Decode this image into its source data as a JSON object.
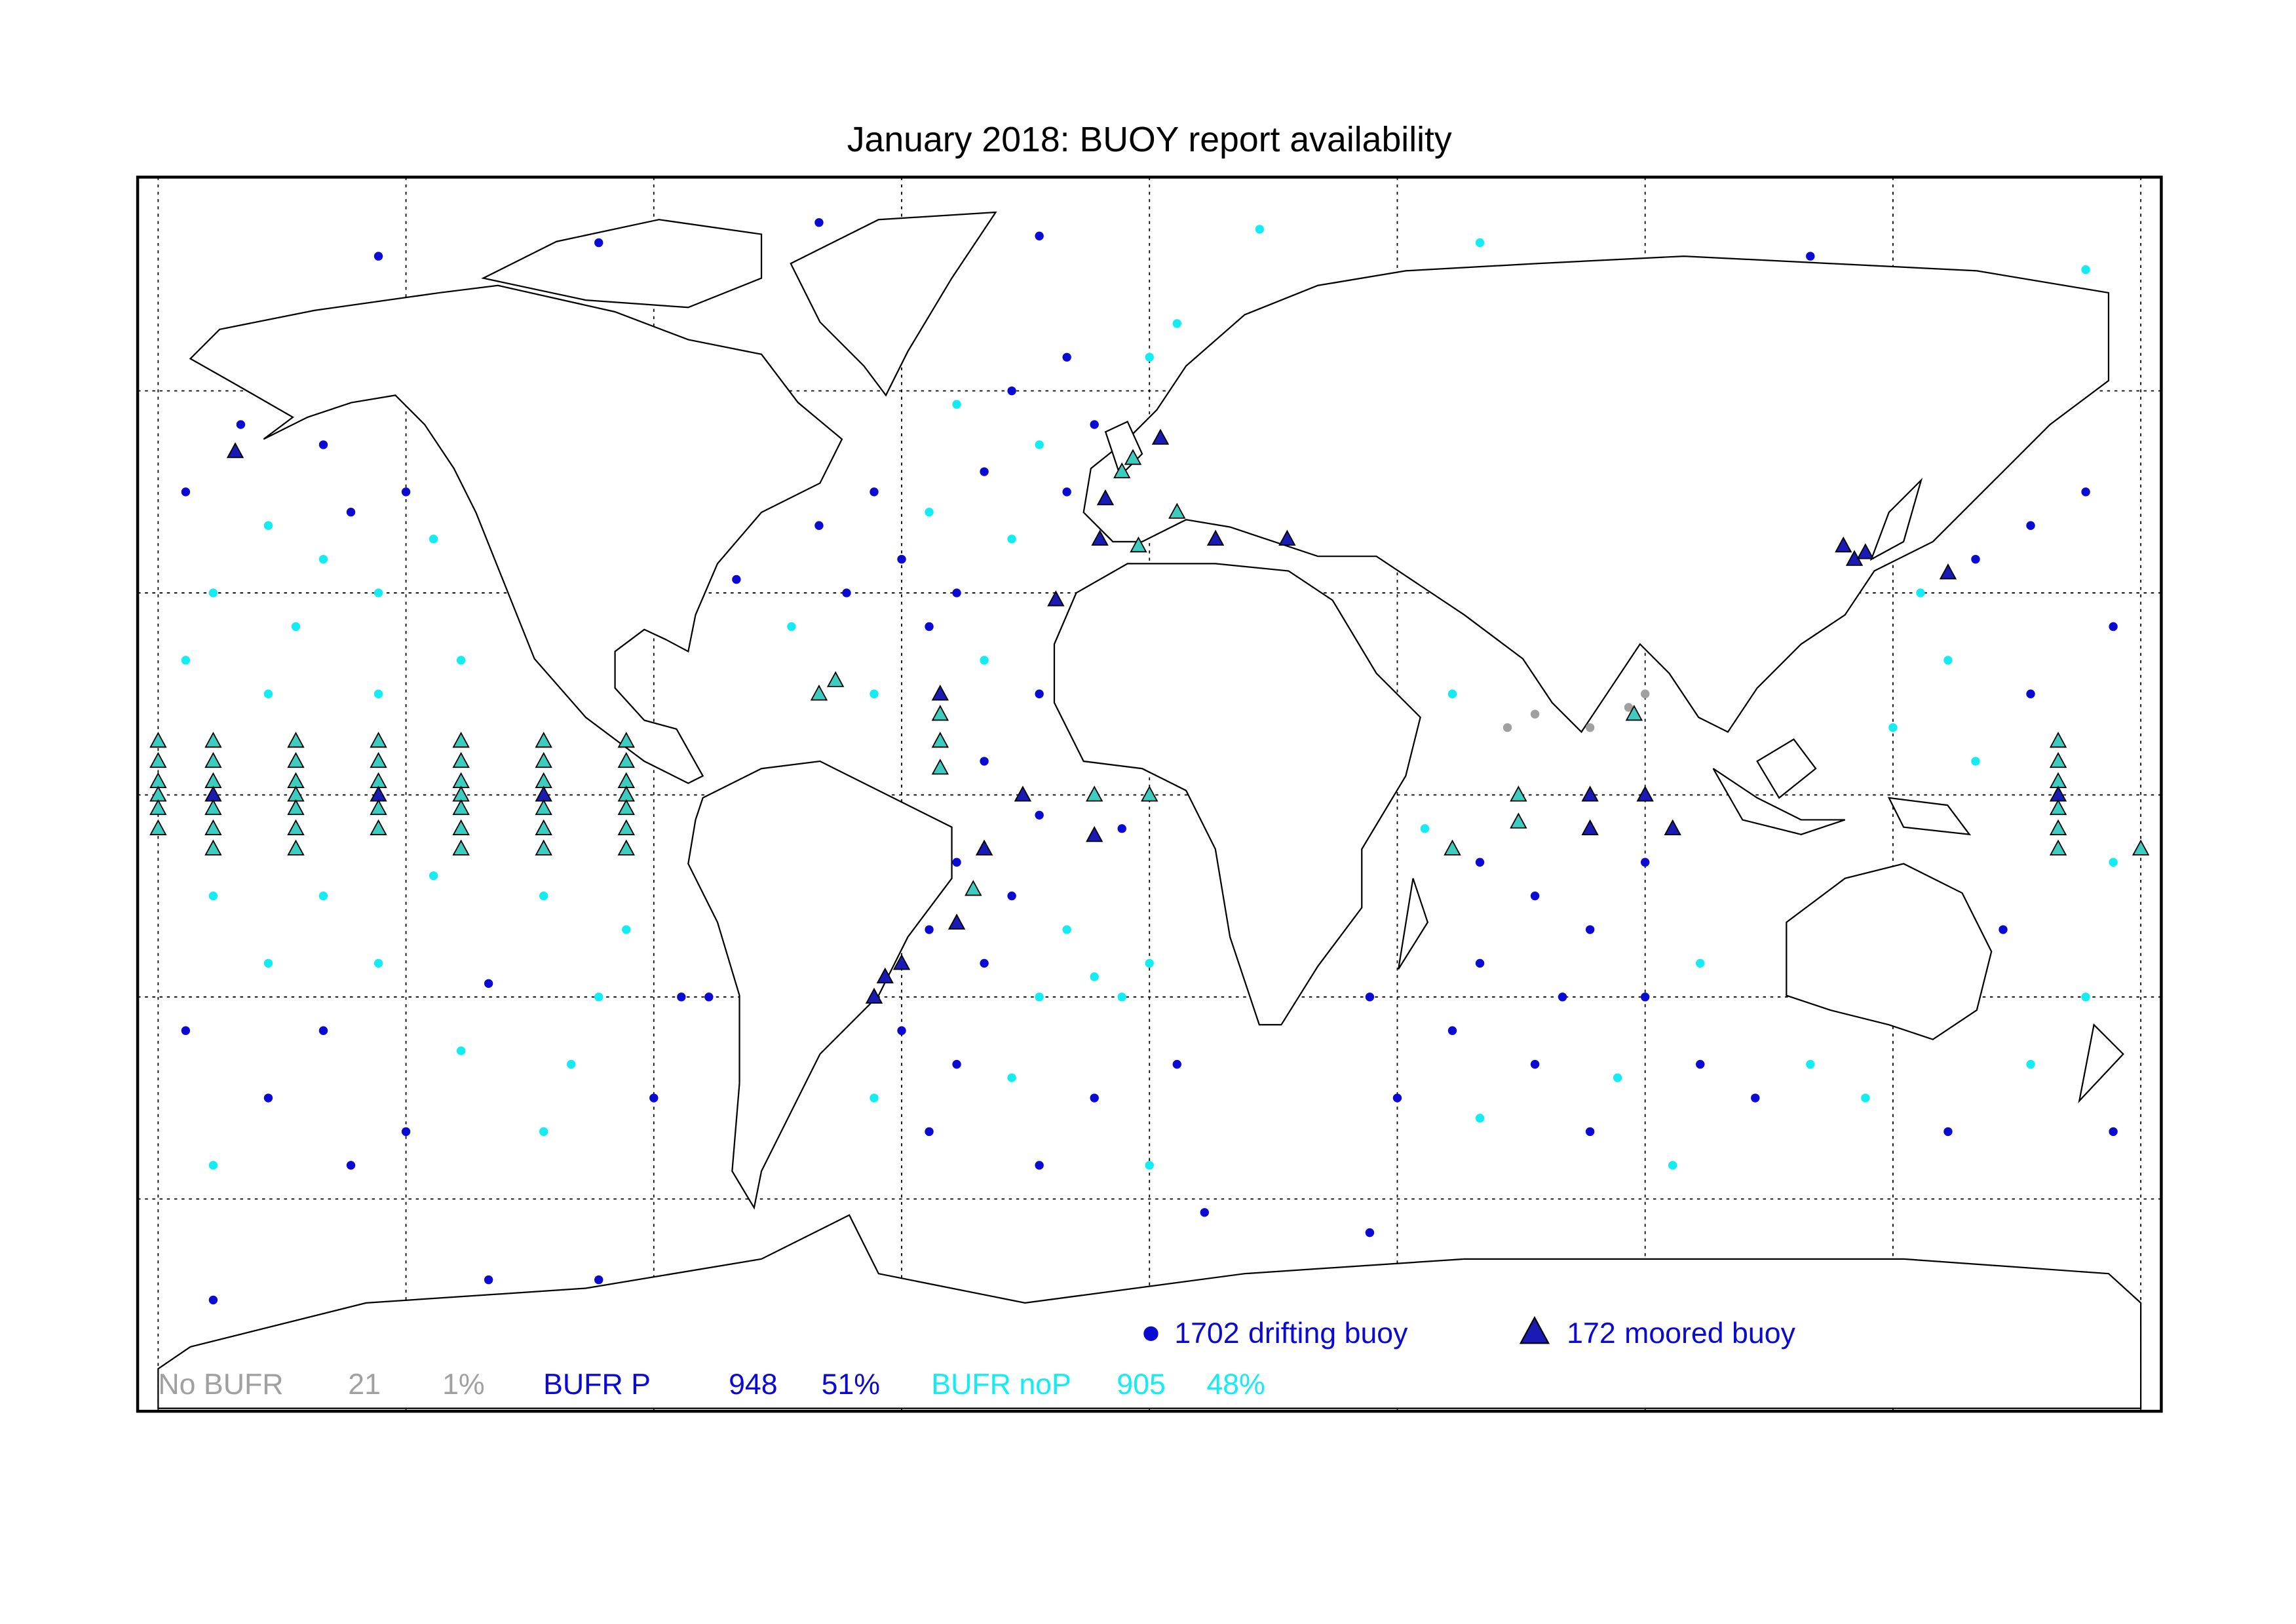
{
  "title": "January 2018: BUOY report availability",
  "map": {
    "lon_range": [
      -180,
      180
    ],
    "lat_range": [
      -90,
      90
    ],
    "meridians": [
      -180,
      -135,
      -90,
      -45,
      0,
      45,
      90,
      135,
      180
    ],
    "parallels": [
      -60,
      -30,
      0,
      30,
      60
    ]
  },
  "legend": [
    {
      "count": 1702,
      "label": "drifting buoy",
      "color": "#0a0ad2"
    },
    {
      "count": 172,
      "label": "moored buoy",
      "color": "#0a0ad2"
    }
  ],
  "stats": [
    {
      "name": "No BUFR",
      "count": 21,
      "percent": {
        "value": 1,
        "label": "1%"
      },
      "color": "#a0a0a0"
    },
    {
      "name": "BUFR P",
      "count": 948,
      "percent": {
        "value": 51,
        "label": "51%"
      },
      "color": "#0a0ad2"
    },
    {
      "name": "BUFR noP",
      "count": 905,
      "percent": {
        "value": 48,
        "label": "48%"
      },
      "color": "#14ecf4"
    }
  ],
  "buoys": {
    "drifting": [
      [
        -175,
        45,
        "BUFR P"
      ],
      [
        -160,
        40,
        "BUFR noP"
      ],
      [
        -150,
        35,
        "BUFR noP"
      ],
      [
        -145,
        42,
        "BUFR P"
      ],
      [
        -170,
        30,
        "BUFR noP"
      ],
      [
        -140,
        30,
        "BUFR noP"
      ],
      [
        -155,
        25,
        "BUFR noP"
      ],
      [
        -135,
        45,
        "BUFR P"
      ],
      [
        -165,
        55,
        "BUFR P"
      ],
      [
        -150,
        52,
        "BUFR P"
      ],
      [
        -130,
        38,
        "BUFR noP"
      ],
      [
        -175,
        20,
        "BUFR noP"
      ],
      [
        -125,
        20,
        "BUFR noP"
      ],
      [
        -160,
        15,
        "BUFR noP"
      ],
      [
        -140,
        15,
        "BUFR noP"
      ],
      [
        -170,
        -15,
        "BUFR noP"
      ],
      [
        -150,
        -15,
        "BUFR noP"
      ],
      [
        -130,
        -12,
        "BUFR noP"
      ],
      [
        -110,
        -15,
        "BUFR noP"
      ],
      [
        -95,
        -20,
        "BUFR noP"
      ],
      [
        -160,
        -25,
        "BUFR noP"
      ],
      [
        -140,
        -25,
        "BUFR noP"
      ],
      [
        -120,
        -28,
        "BUFR P"
      ],
      [
        -100,
        -30,
        "BUFR noP"
      ],
      [
        -85,
        -30,
        "BUFR P"
      ],
      [
        -175,
        -35,
        "BUFR P"
      ],
      [
        -150,
        -35,
        "BUFR P"
      ],
      [
        -125,
        -38,
        "BUFR noP"
      ],
      [
        -105,
        -40,
        "BUFR noP"
      ],
      [
        -160,
        -45,
        "BUFR P"
      ],
      [
        -135,
        -50,
        "BUFR P"
      ],
      [
        -110,
        -50,
        "BUFR noP"
      ],
      [
        -145,
        -55,
        "BUFR P"
      ],
      [
        -170,
        -55,
        "BUFR noP"
      ],
      [
        -90,
        -45,
        "BUFR P"
      ],
      [
        -80,
        -30,
        "BUFR P"
      ],
      [
        -140,
        80,
        "BUFR P"
      ],
      [
        -100,
        82,
        "BUFR P"
      ],
      [
        -60,
        85,
        "BUFR P"
      ],
      [
        -20,
        83,
        "BUFR P"
      ],
      [
        20,
        84,
        "BUFR noP"
      ],
      [
        60,
        82,
        "BUFR noP"
      ],
      [
        120,
        80,
        "BUFR P"
      ],
      [
        170,
        78,
        "BUFR noP"
      ],
      [
        -60,
        40,
        "BUFR P"
      ],
      [
        -50,
        45,
        "BUFR P"
      ],
      [
        -40,
        42,
        "BUFR noP"
      ],
      [
        -30,
        48,
        "BUFR P"
      ],
      [
        -20,
        52,
        "BUFR noP"
      ],
      [
        -45,
        35,
        "BUFR P"
      ],
      [
        -35,
        30,
        "BUFR P"
      ],
      [
        -25,
        38,
        "BUFR noP"
      ],
      [
        -15,
        45,
        "BUFR P"
      ],
      [
        -55,
        30,
        "BUFR P"
      ],
      [
        -65,
        25,
        "BUFR noP"
      ],
      [
        -40,
        25,
        "BUFR P"
      ],
      [
        -30,
        20,
        "BUFR noP"
      ],
      [
        -50,
        15,
        "BUFR noP"
      ],
      [
        -20,
        15,
        "BUFR P"
      ],
      [
        -10,
        55,
        "BUFR P"
      ],
      [
        -25,
        60,
        "BUFR P"
      ],
      [
        -35,
        58,
        "BUFR noP"
      ],
      [
        0,
        65,
        "BUFR noP"
      ],
      [
        5,
        70,
        "BUFR noP"
      ],
      [
        -15,
        65,
        "BUFR P"
      ],
      [
        -75,
        32,
        "BUFR P"
      ],
      [
        -30,
        5,
        "BUFR P"
      ],
      [
        -20,
        -3,
        "BUFR P"
      ],
      [
        -10,
        0,
        "BUFR P"
      ],
      [
        -5,
        -5,
        "BUFR P"
      ],
      [
        -35,
        -10,
        "BUFR P"
      ],
      [
        -25,
        -15,
        "BUFR P"
      ],
      [
        -15,
        -20,
        "BUFR noP"
      ],
      [
        -40,
        -20,
        "BUFR P"
      ],
      [
        -30,
        -25,
        "BUFR P"
      ],
      [
        -20,
        -30,
        "BUFR noP"
      ],
      [
        -10,
        -27,
        "BUFR noP"
      ],
      [
        0,
        -25,
        "BUFR noP"
      ],
      [
        -5,
        -30,
        "BUFR noP"
      ],
      [
        -45,
        -35,
        "BUFR P"
      ],
      [
        -35,
        -40,
        "BUFR P"
      ],
      [
        -25,
        -42,
        "BUFR noP"
      ],
      [
        -10,
        -45,
        "BUFR P"
      ],
      [
        5,
        -40,
        "BUFR P"
      ],
      [
        -40,
        -50,
        "BUFR P"
      ],
      [
        -20,
        -55,
        "BUFR P"
      ],
      [
        0,
        -55,
        "BUFR noP"
      ],
      [
        -50,
        -45,
        "BUFR noP"
      ],
      [
        50,
        -5,
        "BUFR noP"
      ],
      [
        60,
        -10,
        "BUFR P"
      ],
      [
        70,
        -15,
        "BUFR P"
      ],
      [
        80,
        -20,
        "BUFR P"
      ],
      [
        90,
        -10,
        "BUFR P"
      ],
      [
        65,
        10,
        "No BUFR"
      ],
      [
        70,
        12,
        "No BUFR"
      ],
      [
        80,
        10,
        "No BUFR"
      ],
      [
        87,
        13,
        "No BUFR"
      ],
      [
        90,
        15,
        "No BUFR"
      ],
      [
        60,
        -25,
        "BUFR P"
      ],
      [
        75,
        -30,
        "BUFR P"
      ],
      [
        90,
        -30,
        "BUFR P"
      ],
      [
        100,
        -25,
        "BUFR noP"
      ],
      [
        55,
        -35,
        "BUFR P"
      ],
      [
        70,
        -40,
        "BUFR P"
      ],
      [
        85,
        -42,
        "BUFR noP"
      ],
      [
        100,
        -40,
        "BUFR P"
      ],
      [
        110,
        -45,
        "BUFR P"
      ],
      [
        45,
        -45,
        "BUFR P"
      ],
      [
        60,
        -48,
        "BUFR noP"
      ],
      [
        80,
        -50,
        "BUFR P"
      ],
      [
        95,
        -55,
        "BUFR noP"
      ],
      [
        40,
        -30,
        "BUFR P"
      ],
      [
        55,
        15,
        "BUFR noP"
      ],
      [
        140,
        30,
        "BUFR noP"
      ],
      [
        150,
        35,
        "BUFR P"
      ],
      [
        160,
        40,
        "BUFR P"
      ],
      [
        170,
        45,
        "BUFR P"
      ],
      [
        145,
        20,
        "BUFR noP"
      ],
      [
        160,
        15,
        "BUFR P"
      ],
      [
        175,
        25,
        "BUFR P"
      ],
      [
        135,
        10,
        "BUFR noP"
      ],
      [
        150,
        5,
        "BUFR noP"
      ],
      [
        165,
        -5,
        "BUFR P"
      ],
      [
        155,
        -20,
        "BUFR P"
      ],
      [
        170,
        -30,
        "BUFR noP"
      ],
      [
        160,
        -40,
        "BUFR noP"
      ],
      [
        175,
        -50,
        "BUFR P"
      ],
      [
        145,
        -50,
        "BUFR P"
      ],
      [
        130,
        -45,
        "BUFR noP"
      ],
      [
        120,
        -40,
        "BUFR noP"
      ],
      [
        175,
        -10,
        "BUFR noP"
      ],
      [
        -170,
        -75,
        "BUFR P"
      ],
      [
        -120,
        -72,
        "BUFR P"
      ],
      [
        -100,
        -72,
        "BUFR P"
      ],
      [
        40,
        -65,
        "BUFR P"
      ],
      [
        10,
        -62,
        "BUFR P"
      ]
    ],
    "moored": [
      [
        -180,
        8,
        "BUFR noP"
      ],
      [
        -180,
        5,
        "BUFR noP"
      ],
      [
        -180,
        2,
        "BUFR noP"
      ],
      [
        -180,
        0,
        "BUFR noP"
      ],
      [
        -180,
        -2,
        "BUFR noP"
      ],
      [
        -180,
        -5,
        "BUFR noP"
      ],
      [
        -170,
        8,
        "BUFR noP"
      ],
      [
        -170,
        5,
        "BUFR noP"
      ],
      [
        -170,
        2,
        "BUFR noP"
      ],
      [
        -170,
        0,
        "BUFR P"
      ],
      [
        -170,
        -2,
        "BUFR noP"
      ],
      [
        -170,
        -5,
        "BUFR noP"
      ],
      [
        -170,
        -8,
        "BUFR noP"
      ],
      [
        -155,
        8,
        "BUFR noP"
      ],
      [
        -155,
        5,
        "BUFR noP"
      ],
      [
        -155,
        2,
        "BUFR noP"
      ],
      [
        -155,
        0,
        "BUFR noP"
      ],
      [
        -155,
        -2,
        "BUFR noP"
      ],
      [
        -155,
        -5,
        "BUFR noP"
      ],
      [
        -155,
        -8,
        "BUFR noP"
      ],
      [
        -140,
        8,
        "BUFR noP"
      ],
      [
        -140,
        5,
        "BUFR noP"
      ],
      [
        -140,
        2,
        "BUFR noP"
      ],
      [
        -140,
        0,
        "BUFR P"
      ],
      [
        -140,
        -2,
        "BUFR noP"
      ],
      [
        -140,
        -5,
        "BUFR noP"
      ],
      [
        -125,
        8,
        "BUFR noP"
      ],
      [
        -125,
        5,
        "BUFR noP"
      ],
      [
        -125,
        2,
        "BUFR noP"
      ],
      [
        -125,
        0,
        "BUFR noP"
      ],
      [
        -125,
        -2,
        "BUFR noP"
      ],
      [
        -125,
        -5,
        "BUFR noP"
      ],
      [
        -125,
        -8,
        "BUFR noP"
      ],
      [
        -110,
        8,
        "BUFR noP"
      ],
      [
        -110,
        5,
        "BUFR noP"
      ],
      [
        -110,
        2,
        "BUFR noP"
      ],
      [
        -110,
        0,
        "BUFR P"
      ],
      [
        -110,
        -2,
        "BUFR noP"
      ],
      [
        -110,
        -5,
        "BUFR noP"
      ],
      [
        -110,
        -8,
        "BUFR noP"
      ],
      [
        -95,
        8,
        "BUFR noP"
      ],
      [
        -95,
        5,
        "BUFR noP"
      ],
      [
        -95,
        2,
        "BUFR noP"
      ],
      [
        -95,
        0,
        "BUFR noP"
      ],
      [
        -95,
        -2,
        "BUFR noP"
      ],
      [
        -95,
        -5,
        "BUFR noP"
      ],
      [
        -95,
        -8,
        "BUFR noP"
      ],
      [
        165,
        8,
        "BUFR noP"
      ],
      [
        165,
        5,
        "BUFR noP"
      ],
      [
        165,
        2,
        "BUFR noP"
      ],
      [
        165,
        0,
        "BUFR P"
      ],
      [
        165,
        -2,
        "BUFR noP"
      ],
      [
        165,
        -5,
        "BUFR noP"
      ],
      [
        165,
        -8,
        "BUFR noP"
      ],
      [
        180,
        -8,
        "BUFR noP"
      ],
      [
        -38,
        15,
        "BUFR P"
      ],
      [
        -38,
        12,
        "BUFR noP"
      ],
      [
        -38,
        8,
        "BUFR noP"
      ],
      [
        -38,
        4,
        "BUFR noP"
      ],
      [
        -23,
        0,
        "BUFR P"
      ],
      [
        -10,
        0,
        "BUFR noP"
      ],
      [
        0,
        0,
        "BUFR noP"
      ],
      [
        -10,
        -6,
        "BUFR P"
      ],
      [
        -30,
        -8,
        "BUFR P"
      ],
      [
        -32,
        -14,
        "BUFR noP"
      ],
      [
        -60,
        15,
        "BUFR noP"
      ],
      [
        -57,
        17,
        "BUFR noP"
      ],
      [
        67,
        0,
        "BUFR noP"
      ],
      [
        67,
        -4,
        "BUFR noP"
      ],
      [
        80,
        0,
        "BUFR P"
      ],
      [
        80,
        -5,
        "BUFR P"
      ],
      [
        90,
        0,
        "BUFR P"
      ],
      [
        95,
        -5,
        "BUFR P"
      ],
      [
        55,
        -8,
        "BUFR noP"
      ],
      [
        88,
        12,
        "BUFR noP"
      ],
      [
        -8,
        44,
        "BUFR P"
      ],
      [
        -5,
        48,
        "BUFR noP"
      ],
      [
        2,
        53,
        "BUFR P"
      ],
      [
        -3,
        50,
        "BUFR noP"
      ],
      [
        5,
        42,
        "BUFR noP"
      ],
      [
        12,
        38,
        "BUFR P"
      ],
      [
        25,
        38,
        "BUFR P"
      ],
      [
        -9,
        38,
        "BUFR P"
      ],
      [
        -2,
        37,
        "BUFR noP"
      ],
      [
        -17,
        29,
        "BUFR P"
      ],
      [
        126,
        37,
        "BUFR P"
      ],
      [
        128,
        35,
        "BUFR P"
      ],
      [
        130,
        36,
        "BUFR P"
      ],
      [
        145,
        33,
        "BUFR P"
      ],
      [
        -166,
        51,
        "BUFR P"
      ],
      [
        -48,
        -27,
        "BUFR P"
      ],
      [
        -45,
        -25,
        "BUFR P"
      ],
      [
        -50,
        -30,
        "BUFR P"
      ],
      [
        -35,
        -19,
        "BUFR P"
      ]
    ]
  }
}
